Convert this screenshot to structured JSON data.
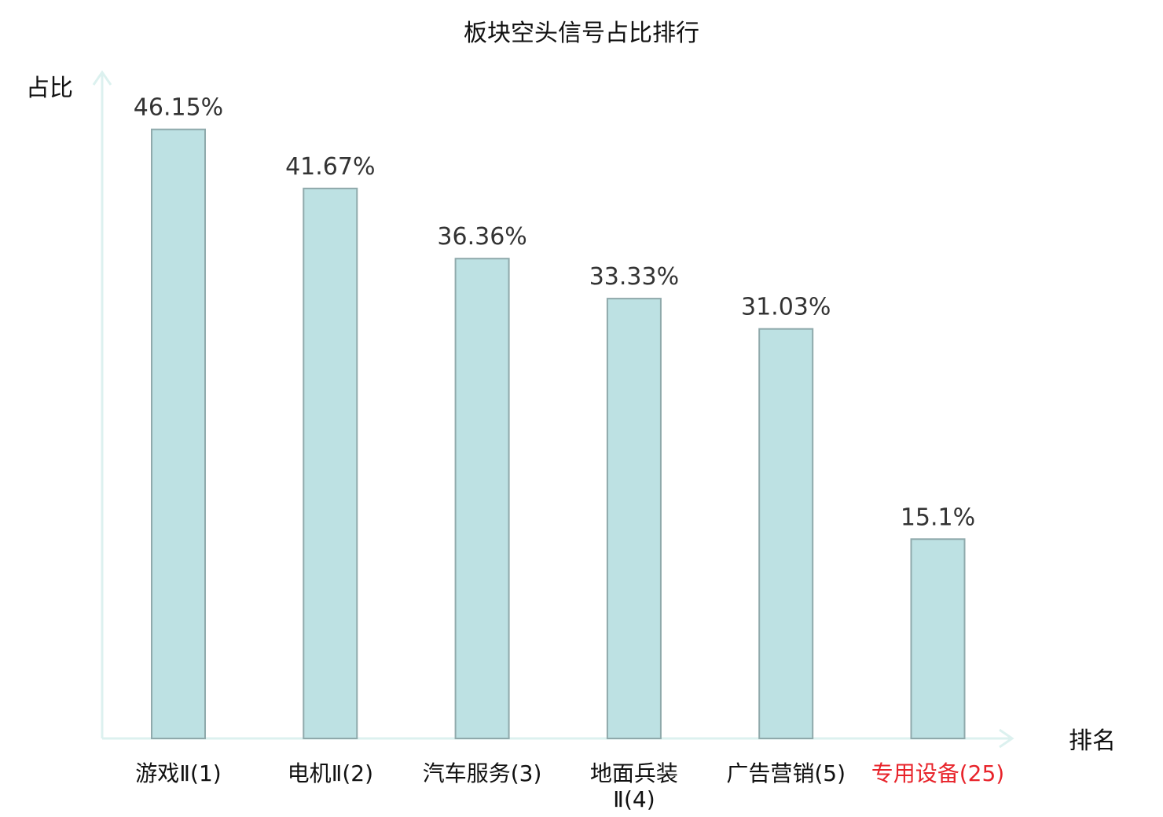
{
  "chart_data": {
    "type": "bar",
    "title": "板块空头信号占比排行",
    "ylabel": "占比",
    "xlabel": "排名",
    "ylim": [
      0,
      50
    ],
    "grid": false,
    "categories": [
      "游戏Ⅱ(1)",
      "电机Ⅱ(2)",
      "汽车服务(3)",
      "地面兵装Ⅱ(4)",
      "广告营销(5)",
      "专用设备(25)"
    ],
    "category_lines": [
      [
        "游戏Ⅱ(1)"
      ],
      [
        "电机Ⅱ(2)"
      ],
      [
        "汽车服务(3)"
      ],
      [
        "地面兵装",
        "Ⅱ(4)"
      ],
      [
        "广告营销(5)"
      ],
      [
        "专用设备(25)"
      ]
    ],
    "highlight_category": "专用设备(25)",
    "values": [
      46.15,
      41.67,
      36.36,
      33.33,
      31.03,
      15.1
    ],
    "value_labels": [
      "46.15%",
      "41.67%",
      "36.36%",
      "33.33%",
      "31.03%",
      "15.1%"
    ],
    "colors": {
      "bar_fill": "#bde1e3",
      "bar_stroke": "#8fa9ab",
      "axis": "#dcf1ef",
      "highlight_text": "#e8232a"
    }
  }
}
